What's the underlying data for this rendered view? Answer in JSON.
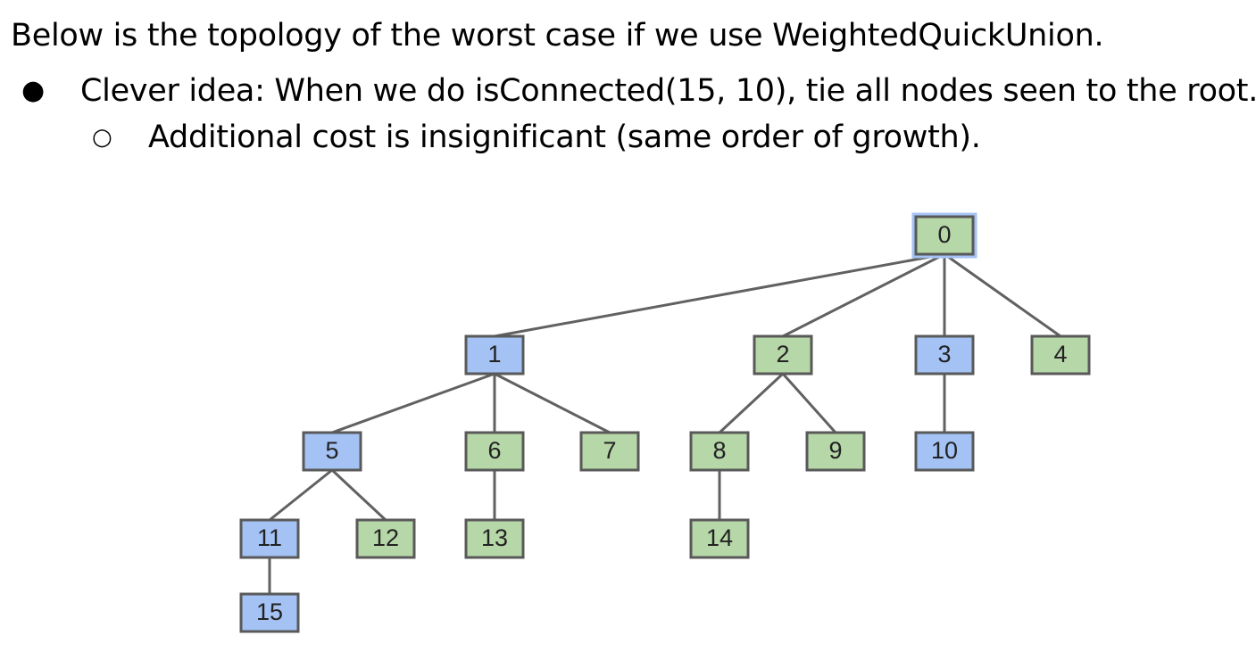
{
  "heading": "Below is the topology of the worst case if we use WeightedQuickUnion.",
  "bullet_1": {
    "marker": "●",
    "text": "Clever idea: When we do isConnected(15, 10), tie all nodes seen to the root."
  },
  "bullet_2": {
    "marker": "○",
    "text": "Additional cost is insignificant (same order of growth)."
  },
  "colors": {
    "blue_node": "#a4c2f4",
    "green_node": "#b6d7a8",
    "root_border": "#a4c2f4",
    "edge": "#616161"
  },
  "tree": {
    "nodes": [
      {
        "id": "0",
        "label": "0",
        "color": "green",
        "highlighted": true
      },
      {
        "id": "1",
        "label": "1",
        "color": "blue"
      },
      {
        "id": "2",
        "label": "2",
        "color": "green"
      },
      {
        "id": "3",
        "label": "3",
        "color": "blue"
      },
      {
        "id": "4",
        "label": "4",
        "color": "green"
      },
      {
        "id": "5",
        "label": "5",
        "color": "blue"
      },
      {
        "id": "6",
        "label": "6",
        "color": "green"
      },
      {
        "id": "7",
        "label": "7",
        "color": "green"
      },
      {
        "id": "8",
        "label": "8",
        "color": "green"
      },
      {
        "id": "9",
        "label": "9",
        "color": "green"
      },
      {
        "id": "10",
        "label": "10",
        "color": "blue"
      },
      {
        "id": "11",
        "label": "11",
        "color": "blue"
      },
      {
        "id": "12",
        "label": "12",
        "color": "green"
      },
      {
        "id": "13",
        "label": "13",
        "color": "green"
      },
      {
        "id": "14",
        "label": "14",
        "color": "green"
      },
      {
        "id": "15",
        "label": "15",
        "color": "blue"
      }
    ],
    "edges": [
      [
        "0",
        "1"
      ],
      [
        "0",
        "2"
      ],
      [
        "0",
        "3"
      ],
      [
        "0",
        "4"
      ],
      [
        "1",
        "5"
      ],
      [
        "1",
        "6"
      ],
      [
        "1",
        "7"
      ],
      [
        "2",
        "8"
      ],
      [
        "2",
        "9"
      ],
      [
        "3",
        "10"
      ],
      [
        "5",
        "11"
      ],
      [
        "5",
        "12"
      ],
      [
        "6",
        "13"
      ],
      [
        "8",
        "14"
      ],
      [
        "11",
        "15"
      ]
    ]
  }
}
